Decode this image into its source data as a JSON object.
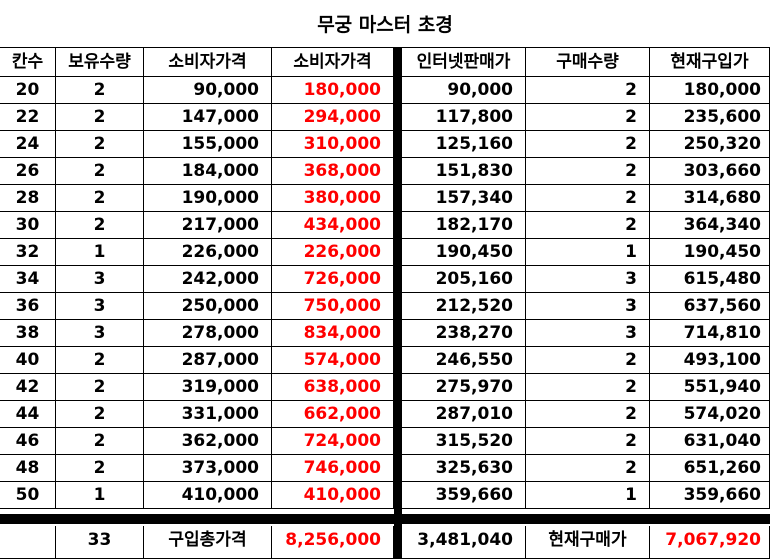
{
  "title": "무궁 마스터 초경",
  "headers": [
    "칸수",
    "보유수량",
    "소비자가격",
    "소비자가격",
    "인터넷판매가",
    "구매수량",
    "현재구입가"
  ],
  "rows": [
    [
      "20",
      "2",
      "90,000",
      "180,000",
      "90,000",
      "2",
      "180,000"
    ],
    [
      "22",
      "2",
      "147,000",
      "294,000",
      "117,800",
      "2",
      "235,600"
    ],
    [
      "24",
      "2",
      "155,000",
      "310,000",
      "125,160",
      "2",
      "250,320"
    ],
    [
      "26",
      "2",
      "184,000",
      "368,000",
      "151,830",
      "2",
      "303,660"
    ],
    [
      "28",
      "2",
      "190,000",
      "380,000",
      "157,340",
      "2",
      "314,680"
    ],
    [
      "30",
      "2",
      "217,000",
      "434,000",
      "182,170",
      "2",
      "364,340"
    ],
    [
      "32",
      "1",
      "226,000",
      "226,000",
      "190,450",
      "1",
      "190,450"
    ],
    [
      "34",
      "3",
      "242,000",
      "726,000",
      "205,160",
      "3",
      "615,480"
    ],
    [
      "36",
      "3",
      "250,000",
      "750,000",
      "212,520",
      "3",
      "637,560"
    ],
    [
      "38",
      "3",
      "278,000",
      "834,000",
      "238,270",
      "3",
      "714,810"
    ],
    [
      "40",
      "2",
      "287,000",
      "574,000",
      "246,550",
      "2",
      "493,100"
    ],
    [
      "42",
      "2",
      "319,000",
      "638,000",
      "275,970",
      "2",
      "551,940"
    ],
    [
      "44",
      "2",
      "331,000",
      "662,000",
      "287,010",
      "2",
      "574,020"
    ],
    [
      "46",
      "2",
      "362,000",
      "724,000",
      "315,520",
      "2",
      "631,040"
    ],
    [
      "48",
      "2",
      "373,000",
      "746,000",
      "325,630",
      "2",
      "651,260"
    ],
    [
      "50",
      "1",
      "410,000",
      "410,000",
      "359,660",
      "1",
      "359,660"
    ]
  ],
  "totals": {
    "first": "",
    "qty_total": "33",
    "label_purchase_total": "구입총가격",
    "purchase_total": "8,256,000",
    "internet_total": "3,481,040",
    "label_current_total": "현재구매가",
    "current_total": "7,067,920"
  },
  "colors": {
    "accent_red": "#ff0000",
    "divider": "#000000"
  }
}
